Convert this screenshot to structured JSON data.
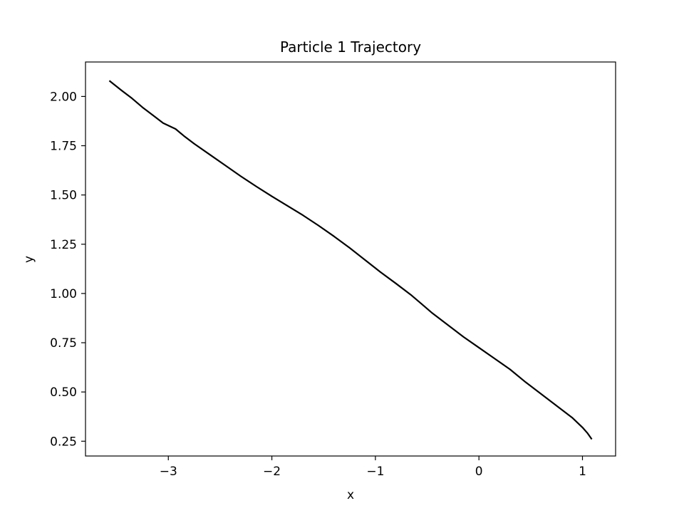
{
  "chart_data": {
    "type": "line",
    "title": "Particle 1 Trajectory",
    "xlabel": "x",
    "ylabel": "y",
    "xlim": [
      -3.8,
      1.32
    ],
    "ylim": [
      0.175,
      2.175
    ],
    "xticks": [
      -3,
      -2,
      -1,
      0,
      1
    ],
    "xtick_labels": [
      "−3",
      "−2",
      "−1",
      "0",
      "1"
    ],
    "yticks": [
      0.25,
      0.5,
      0.75,
      1.0,
      1.25,
      1.5,
      1.75,
      2.0
    ],
    "ytick_labels": [
      "0.25",
      "0.50",
      "0.75",
      "1.00",
      "1.25",
      "1.50",
      "1.75",
      "2.00"
    ],
    "grid": false,
    "line_color": "#000000",
    "series": [
      {
        "x": [
          -3.57,
          -3.45,
          -3.35,
          -3.25,
          -3.15,
          -3.05,
          -2.97,
          -2.93,
          -2.85,
          -2.75,
          -2.6,
          -2.45,
          -2.3,
          -2.15,
          -2.0,
          -1.85,
          -1.7,
          -1.55,
          -1.4,
          -1.25,
          -1.1,
          -0.95,
          -0.8,
          -0.65,
          -0.55,
          -0.45,
          -0.3,
          -0.15,
          0.0,
          0.15,
          0.3,
          0.45,
          0.6,
          0.75,
          0.9,
          1.0,
          1.05,
          1.09
        ],
        "y": [
          2.08,
          2.03,
          1.99,
          1.945,
          1.905,
          1.865,
          1.845,
          1.835,
          1.8,
          1.76,
          1.705,
          1.65,
          1.595,
          1.543,
          1.493,
          1.445,
          1.397,
          1.345,
          1.29,
          1.232,
          1.17,
          1.108,
          1.05,
          0.99,
          0.945,
          0.9,
          0.84,
          0.78,
          0.725,
          0.67,
          0.615,
          0.55,
          0.49,
          0.43,
          0.37,
          0.32,
          0.29,
          0.26
        ]
      }
    ]
  }
}
